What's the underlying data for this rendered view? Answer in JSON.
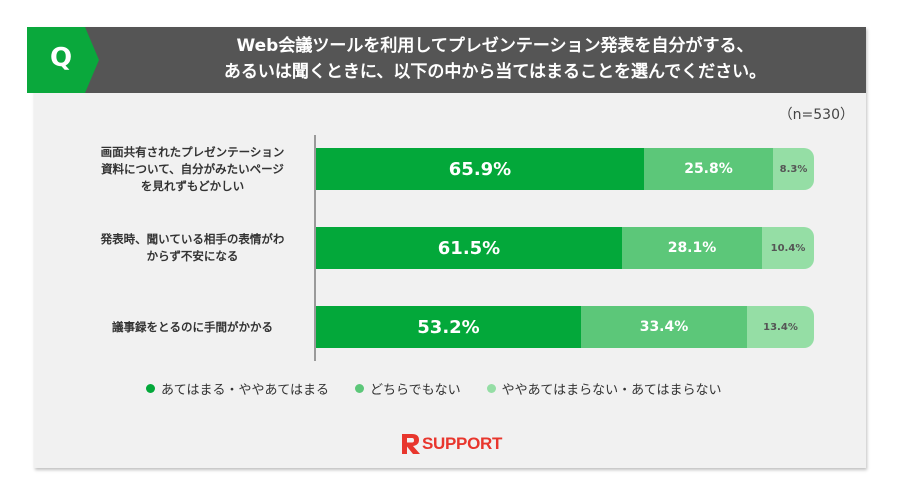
{
  "question": {
    "badge": "Q",
    "text": "Web会議ツールを利用してプレゼンテーション発表を自分がする、\nあるいは聞くときに、以下の中から当てはまることを選んでください。"
  },
  "sample_size": "（n=530）",
  "colors": {
    "header_bg": "#555555",
    "badge_green": "#0aa83c",
    "series": [
      "#03a83a",
      "#5cc779",
      "#95dea5"
    ]
  },
  "chart_data": {
    "type": "bar",
    "orientation": "horizontal",
    "stacked": true,
    "categories": [
      "画面共有されたプレゼンテーション\n資料について、自分がみたいページ\nを見れずもどかしい",
      "発表時、聞いている相手の表情がわ\nからず不安になる",
      "議事録をとるのに手間がかかる"
    ],
    "series": [
      {
        "name": "あてはまる・ややあてはまる",
        "values": [
          65.9,
          61.5,
          53.2
        ],
        "labels": [
          "65.9%",
          "61.5%",
          "53.2%"
        ]
      },
      {
        "name": "どちらでもない",
        "values": [
          25.8,
          28.1,
          33.4
        ],
        "labels": [
          "25.8%",
          "28.1%",
          "33.4%"
        ]
      },
      {
        "name": "ややあてはまらない・あてはまらない",
        "values": [
          8.3,
          10.4,
          13.4
        ],
        "labels": [
          "8.3%",
          "10.4%",
          "13.4%"
        ]
      }
    ],
    "xlim": [
      0,
      100
    ],
    "legend_position": "bottom"
  },
  "logo": {
    "text": "SUPPORT",
    "icon": "rsupport-r-logo-icon"
  }
}
